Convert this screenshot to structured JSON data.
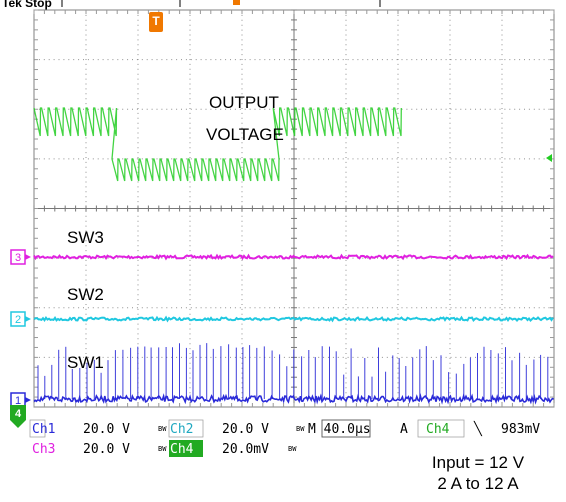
{
  "top_status": "Tek Stop",
  "trigger_marker": "T",
  "chart_data": {
    "type": "line",
    "title": "",
    "grid": true,
    "divisions": {
      "horizontal": 10,
      "vertical": 8
    },
    "series": [
      {
        "name": "OUTPUT VOLTAGE",
        "name_line2": "",
        "channel": 4,
        "color": "#22cc22",
        "ripple_mv_pp": 20,
        "segments": [
          {
            "from_div": 0.0,
            "to_div": 1.5,
            "level": "high"
          },
          {
            "from_div": 1.5,
            "to_div": 4.6,
            "level": "low"
          },
          {
            "from_div": 4.6,
            "to_div": 7.0,
            "level": "high"
          }
        ]
      },
      {
        "name": "SW3",
        "channel": 3,
        "color": "#e020e0"
      },
      {
        "name": "SW2",
        "channel": 2,
        "color": "#20c8e0"
      },
      {
        "name": "SW1",
        "channel": 1,
        "color": "#2a2ad8"
      }
    ],
    "annotations": {
      "output_voltage_line1": "OUTPUT",
      "output_voltage_line2": "VOLTAGE"
    },
    "channel_markers": [
      "3",
      "2",
      "1",
      "4"
    ]
  },
  "readout": {
    "ch1_label": "Ch1",
    "ch1_scale": "20.0 V",
    "ch2_label": "Ch2",
    "ch2_scale": "20.0 V",
    "ch3_label": "Ch3",
    "ch3_scale": "20.0 V",
    "ch4_label": "Ch4",
    "ch4_scale": "20.0mV",
    "bw_mark": "BW",
    "timebase": "M 40.0µs",
    "trigger_mode": "A",
    "trigger_source": "Ch4",
    "trigger_slope": "╲",
    "trigger_level": "983mV"
  },
  "caption": {
    "line1": "Input = 12 V",
    "line2": "2 A to 12 A"
  },
  "colors": {
    "ch1": "#2a2ad8",
    "ch2": "#20c8e0",
    "ch3": "#e020e0",
    "ch4": "#22cc22",
    "trigger": "#f07800",
    "grid": "#909090"
  }
}
